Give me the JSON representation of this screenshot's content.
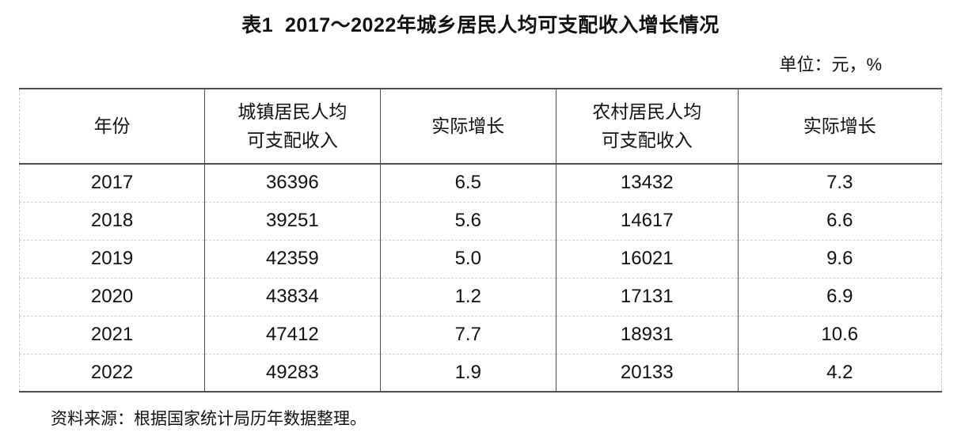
{
  "page": {
    "title": "表1  2017～2022年城乡居民人均可支配收入增长情况",
    "unit_note": "单位：元，%",
    "source_note": "资料来源：根据国家统计局历年数据整理。"
  },
  "table": {
    "headers": [
      "年份",
      "城镇居民人均\n可支配收入",
      "实际增长",
      "农村居民人均\n可支配收入",
      "实际增长"
    ],
    "rows": [
      [
        "2017",
        "36396",
        "6.5",
        "13432",
        "7.3"
      ],
      [
        "2018",
        "39251",
        "5.6",
        "14617",
        "6.6"
      ],
      [
        "2019",
        "42359",
        "5.0",
        "16021",
        "9.6"
      ],
      [
        "2020",
        "43834",
        "1.2",
        "17131",
        "6.9"
      ],
      [
        "2021",
        "47412",
        "7.7",
        "18931",
        "10.6"
      ],
      [
        "2022",
        "49283",
        "1.9",
        "20133",
        "4.2"
      ]
    ]
  },
  "chart_data": {
    "type": "table",
    "title": "表1 2017～2022年城乡居民人均可支配收入增长情况",
    "unit": "元，%",
    "columns": [
      "年份",
      "城镇居民人均可支配收入",
      "实际增长",
      "农村居民人均可支配收入",
      "实际增长"
    ],
    "rows": [
      [
        2017,
        36396,
        6.5,
        13432,
        7.3
      ],
      [
        2018,
        39251,
        5.6,
        14617,
        6.6
      ],
      [
        2019,
        42359,
        5.0,
        16021,
        9.6
      ],
      [
        2020,
        43834,
        1.2,
        17131,
        6.9
      ],
      [
        2021,
        47412,
        7.7,
        18931,
        10.6
      ],
      [
        2022,
        49283,
        1.9,
        20133,
        4.2
      ]
    ],
    "source": "根据国家统计局历年数据整理"
  }
}
